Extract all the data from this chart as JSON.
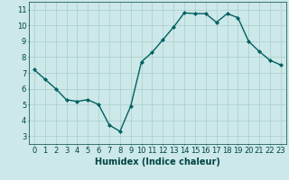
{
  "x": [
    0,
    1,
    2,
    3,
    4,
    5,
    6,
    7,
    8,
    9,
    10,
    11,
    12,
    13,
    14,
    15,
    16,
    17,
    18,
    19,
    20,
    21,
    22,
    23
  ],
  "y": [
    7.2,
    6.6,
    6.0,
    5.3,
    5.2,
    5.3,
    5.0,
    3.7,
    3.3,
    4.9,
    7.7,
    8.3,
    9.1,
    9.9,
    10.8,
    10.75,
    10.75,
    10.2,
    10.75,
    10.5,
    9.0,
    8.35,
    7.8,
    7.5
  ],
  "line_color": "#006060",
  "marker": "D",
  "marker_size": 2.0,
  "line_width": 1.0,
  "bg_color": "#cce8e8",
  "grid_color": "#aacccc",
  "xlabel": "Humidex (Indice chaleur)",
  "xlabel_fontsize": 7,
  "tick_color": "#004444",
  "tick_fontsize": 6,
  "ylim": [
    2.5,
    11.5
  ],
  "xlim": [
    -0.5,
    23.5
  ],
  "yticks": [
    3,
    4,
    5,
    6,
    7,
    8,
    9,
    10,
    11
  ],
  "xticks": [
    0,
    1,
    2,
    3,
    4,
    5,
    6,
    7,
    8,
    9,
    10,
    11,
    12,
    13,
    14,
    15,
    16,
    17,
    18,
    19,
    20,
    21,
    22,
    23
  ]
}
